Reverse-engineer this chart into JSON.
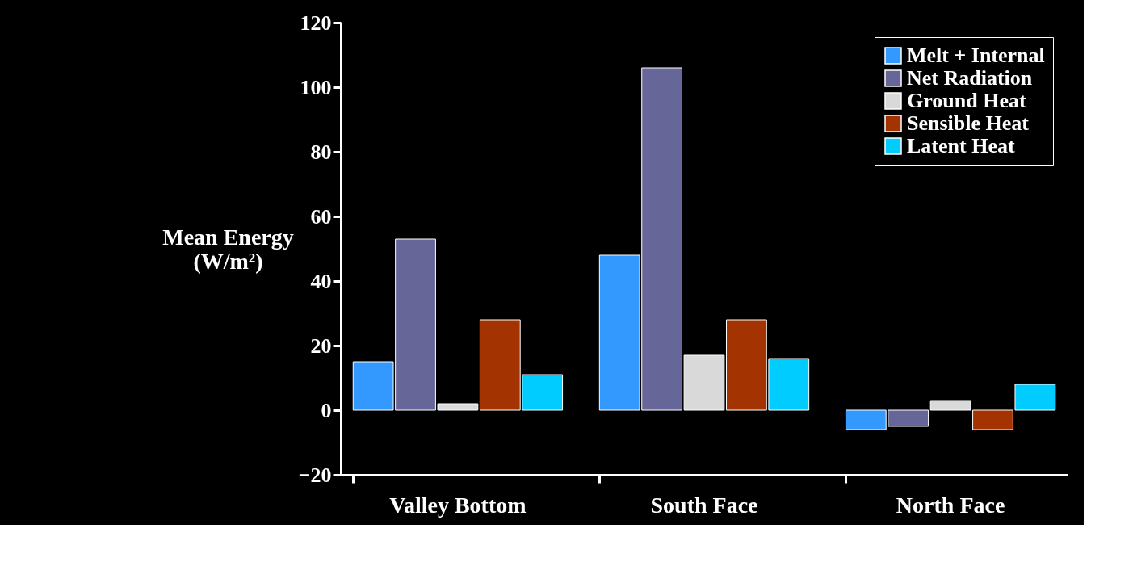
{
  "chart_data": {
    "type": "bar",
    "ylabel": "Mean Energy (W/m²)",
    "categories": [
      "Valley Bottom",
      "South Face",
      "North Face"
    ],
    "series": [
      {
        "name": "Melt + Internal",
        "color": "#3399ff",
        "values": [
          15,
          48,
          -6
        ]
      },
      {
        "name": "Net Radiation",
        "color": "#666699",
        "values": [
          53,
          106,
          -5
        ]
      },
      {
        "name": "Ground Heat",
        "color": "#d9d9d9",
        "values": [
          2,
          17,
          3
        ]
      },
      {
        "name": "Sensible Heat",
        "color": "#a33300",
        "values": [
          28,
          28,
          -6
        ]
      },
      {
        "name": "Latent Heat",
        "color": "#00ccff",
        "values": [
          11,
          16,
          8
        ]
      }
    ],
    "ylim": [
      -20,
      120
    ],
    "yticks": [
      -20,
      0,
      20,
      40,
      60,
      80,
      100,
      120
    ],
    "grid": false,
    "legend": "top right"
  }
}
